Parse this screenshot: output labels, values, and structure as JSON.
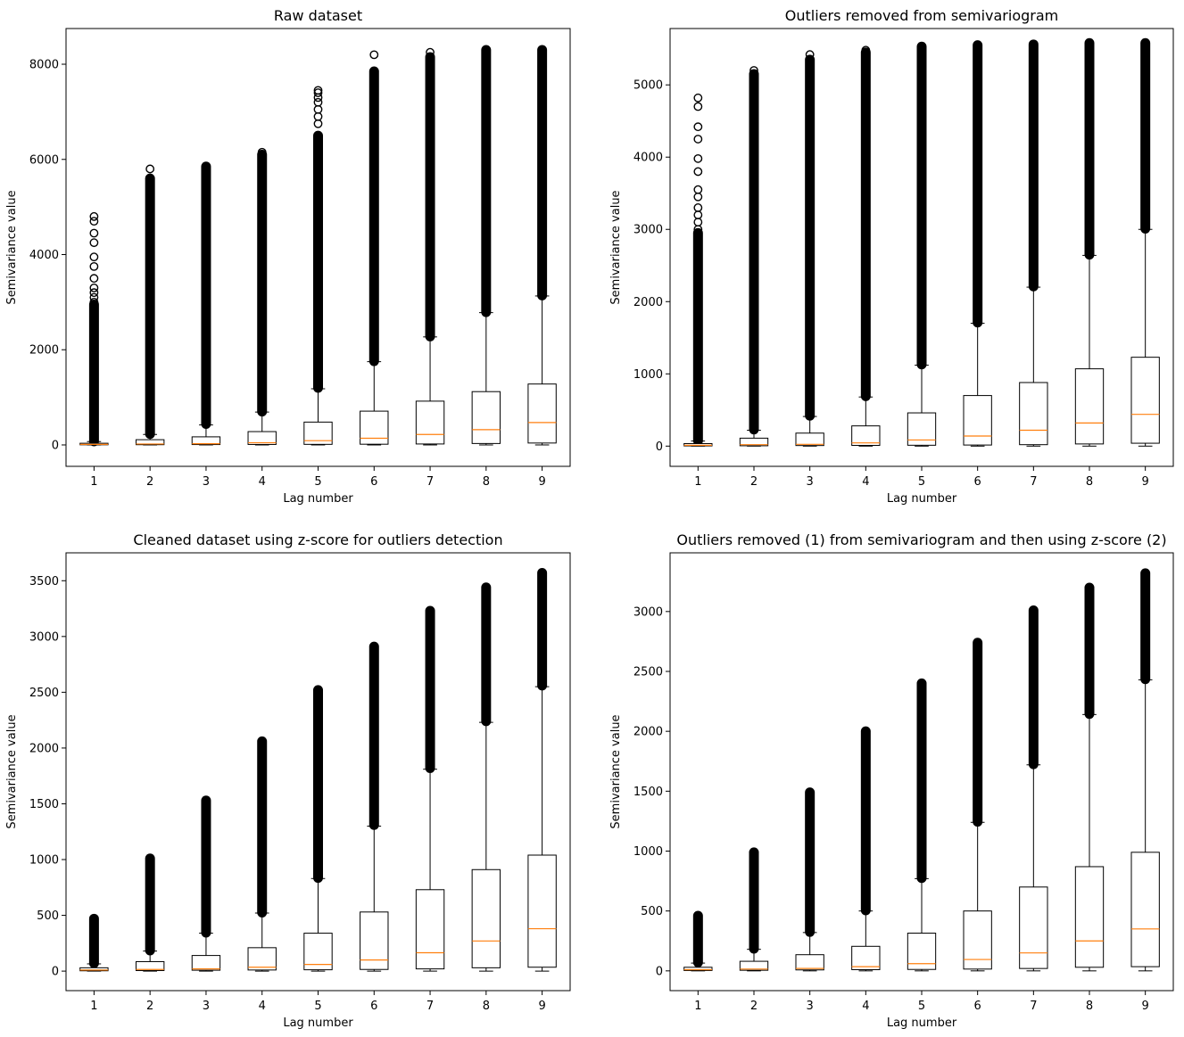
{
  "figure": {
    "background": "#ffffff",
    "box_color": "#000000",
    "median_color": "#ff7f0e",
    "flier_color": "#000000"
  },
  "chart_data": [
    {
      "type": "box",
      "title": "Raw dataset",
      "xlabel": "Lag number",
      "ylabel": "Semivariance value",
      "categories": [
        "1",
        "2",
        "3",
        "4",
        "5",
        "6",
        "7",
        "8",
        "9"
      ],
      "ylim": [
        -450,
        8750
      ],
      "yticks": [
        0,
        2000,
        4000,
        6000,
        8000
      ],
      "boxes": [
        {
          "lag": "1",
          "whislo": 0,
          "q1": 3,
          "med": 12,
          "q3": 35,
          "whishi": 70,
          "flier_lo": 75,
          "flier_hi": 2950,
          "outliers": [
            3000,
            3100,
            3200,
            3300,
            3500,
            3750,
            3950,
            4250,
            4450,
            4700,
            4800
          ]
        },
        {
          "lag": "2",
          "whislo": 0,
          "q1": 5,
          "med": 20,
          "q3": 110,
          "whishi": 220,
          "flier_lo": 230,
          "flier_hi": 5600,
          "outliers": [
            5800
          ]
        },
        {
          "lag": "3",
          "whislo": 0,
          "q1": 8,
          "med": 25,
          "q3": 170,
          "whishi": 420,
          "flier_lo": 440,
          "flier_hi": 5850,
          "outliers": []
        },
        {
          "lag": "4",
          "whislo": 0,
          "q1": 10,
          "med": 45,
          "q3": 280,
          "whishi": 690,
          "flier_lo": 700,
          "flier_hi": 6100,
          "outliers": [
            6150
          ]
        },
        {
          "lag": "5",
          "whislo": 0,
          "q1": 12,
          "med": 90,
          "q3": 480,
          "whishi": 1180,
          "flier_lo": 1200,
          "flier_hi": 6500,
          "outliers": [
            6750,
            6900,
            7050,
            7200,
            7300,
            7400,
            7450
          ]
        },
        {
          "lag": "6",
          "whislo": 0,
          "q1": 15,
          "med": 140,
          "q3": 710,
          "whishi": 1750,
          "flier_lo": 1760,
          "flier_hi": 7850,
          "outliers": [
            8200
          ]
        },
        {
          "lag": "7",
          "whislo": 0,
          "q1": 20,
          "med": 220,
          "q3": 920,
          "whishi": 2270,
          "flier_lo": 2280,
          "flier_hi": 8150,
          "outliers": [
            8250
          ]
        },
        {
          "lag": "8",
          "whislo": 0,
          "q1": 30,
          "med": 320,
          "q3": 1120,
          "whishi": 2780,
          "flier_lo": 2790,
          "flier_hi": 8300,
          "outliers": []
        },
        {
          "lag": "9",
          "whislo": 0,
          "q1": 40,
          "med": 470,
          "q3": 1280,
          "whishi": 3130,
          "flier_lo": 3140,
          "flier_hi": 8300,
          "outliers": []
        }
      ]
    },
    {
      "type": "box",
      "title": "Outliers removed from semivariogram",
      "xlabel": "Lag number",
      "ylabel": "Semivariance value",
      "categories": [
        "1",
        "2",
        "3",
        "4",
        "5",
        "6",
        "7",
        "8",
        "9"
      ],
      "ylim": [
        -280,
        5780
      ],
      "yticks": [
        0,
        1000,
        2000,
        3000,
        4000,
        5000
      ],
      "boxes": [
        {
          "lag": "1",
          "whislo": 0,
          "q1": 3,
          "med": 12,
          "q3": 35,
          "whishi": 70,
          "flier_lo": 75,
          "flier_hi": 2950,
          "outliers": [
            3000,
            3100,
            3200,
            3300,
            3450,
            3550,
            3800,
            3980,
            4250,
            4420,
            4700,
            4820
          ]
        },
        {
          "lag": "2",
          "whislo": 0,
          "q1": 5,
          "med": 20,
          "q3": 110,
          "whishi": 220,
          "flier_lo": 230,
          "flier_hi": 5150,
          "outliers": [
            5200
          ]
        },
        {
          "lag": "3",
          "whislo": 0,
          "q1": 8,
          "med": 25,
          "q3": 180,
          "whishi": 410,
          "flier_lo": 420,
          "flier_hi": 5350,
          "outliers": [
            5420
          ]
        },
        {
          "lag": "4",
          "whislo": 0,
          "q1": 10,
          "med": 45,
          "q3": 280,
          "whishi": 680,
          "flier_lo": 690,
          "flier_hi": 5450,
          "outliers": [
            5480
          ]
        },
        {
          "lag": "5",
          "whislo": 0,
          "q1": 12,
          "med": 85,
          "q3": 460,
          "whishi": 1120,
          "flier_lo": 1130,
          "flier_hi": 5530,
          "outliers": []
        },
        {
          "lag": "6",
          "whislo": 0,
          "q1": 15,
          "med": 140,
          "q3": 700,
          "whishi": 1700,
          "flier_lo": 1710,
          "flier_hi": 5550,
          "outliers": []
        },
        {
          "lag": "7",
          "whislo": 0,
          "q1": 20,
          "med": 220,
          "q3": 880,
          "whishi": 2200,
          "flier_lo": 2210,
          "flier_hi": 5560,
          "outliers": []
        },
        {
          "lag": "8",
          "whislo": 0,
          "q1": 30,
          "med": 320,
          "q3": 1070,
          "whishi": 2640,
          "flier_lo": 2650,
          "flier_hi": 5580,
          "outliers": []
        },
        {
          "lag": "9",
          "whislo": 0,
          "q1": 40,
          "med": 440,
          "q3": 1230,
          "whishi": 3000,
          "flier_lo": 3010,
          "flier_hi": 5580,
          "outliers": []
        }
      ]
    },
    {
      "type": "box",
      "title": "Cleaned dataset using z-score for outliers detection",
      "xlabel": "Lag number",
      "ylabel": "Semivariance value",
      "categories": [
        "1",
        "2",
        "3",
        "4",
        "5",
        "6",
        "7",
        "8",
        "9"
      ],
      "ylim": [
        -175,
        3750
      ],
      "yticks": [
        0,
        500,
        1000,
        1500,
        2000,
        2500,
        3000,
        3500
      ],
      "boxes": [
        {
          "lag": "1",
          "whislo": 0,
          "q1": 3,
          "med": 10,
          "q3": 30,
          "whishi": 65,
          "flier_lo": 70,
          "flier_hi": 470,
          "outliers": []
        },
        {
          "lag": "2",
          "whislo": 0,
          "q1": 5,
          "med": 15,
          "q3": 85,
          "whishi": 180,
          "flier_lo": 185,
          "flier_hi": 1010,
          "outliers": []
        },
        {
          "lag": "3",
          "whislo": 0,
          "q1": 8,
          "med": 20,
          "q3": 140,
          "whishi": 340,
          "flier_lo": 345,
          "flier_hi": 1530,
          "outliers": []
        },
        {
          "lag": "4",
          "whislo": 0,
          "q1": 10,
          "med": 35,
          "q3": 210,
          "whishi": 520,
          "flier_lo": 525,
          "flier_hi": 2060,
          "outliers": []
        },
        {
          "lag": "5",
          "whislo": 0,
          "q1": 12,
          "med": 60,
          "q3": 340,
          "whishi": 830,
          "flier_lo": 835,
          "flier_hi": 2520,
          "outliers": []
        },
        {
          "lag": "6",
          "whislo": 0,
          "q1": 15,
          "med": 100,
          "q3": 530,
          "whishi": 1300,
          "flier_lo": 1310,
          "flier_hi": 2910,
          "outliers": []
        },
        {
          "lag": "7",
          "whislo": 0,
          "q1": 20,
          "med": 165,
          "q3": 730,
          "whishi": 1810,
          "flier_lo": 1820,
          "flier_hi": 3230,
          "outliers": []
        },
        {
          "lag": "8",
          "whislo": 0,
          "q1": 30,
          "med": 270,
          "q3": 910,
          "whishi": 2230,
          "flier_lo": 2240,
          "flier_hi": 3440,
          "outliers": []
        },
        {
          "lag": "9",
          "whislo": 0,
          "q1": 35,
          "med": 380,
          "q3": 1040,
          "whishi": 2550,
          "flier_lo": 2560,
          "flier_hi": 3570,
          "outliers": []
        }
      ]
    },
    {
      "type": "box",
      "title": "Outliers removed (1) from semivariogram and then using z-score (2)",
      "xlabel": "Lag number",
      "ylabel": "Semivariance value",
      "categories": [
        "1",
        "2",
        "3",
        "4",
        "5",
        "6",
        "7",
        "8",
        "9"
      ],
      "ylim": [
        -165,
        3490
      ],
      "yticks": [
        0,
        500,
        1000,
        1500,
        2000,
        2500,
        3000
      ],
      "boxes": [
        {
          "lag": "1",
          "whislo": 0,
          "q1": 3,
          "med": 10,
          "q3": 30,
          "whishi": 65,
          "flier_lo": 70,
          "flier_hi": 460,
          "outliers": []
        },
        {
          "lag": "2",
          "whislo": 0,
          "q1": 5,
          "med": 15,
          "q3": 80,
          "whishi": 180,
          "flier_lo": 185,
          "flier_hi": 990,
          "outliers": []
        },
        {
          "lag": "3",
          "whislo": 0,
          "q1": 8,
          "med": 20,
          "q3": 135,
          "whishi": 320,
          "flier_lo": 325,
          "flier_hi": 1490,
          "outliers": []
        },
        {
          "lag": "4",
          "whislo": 0,
          "q1": 10,
          "med": 35,
          "q3": 205,
          "whishi": 500,
          "flier_lo": 505,
          "flier_hi": 2000,
          "outliers": []
        },
        {
          "lag": "5",
          "whislo": 0,
          "q1": 12,
          "med": 60,
          "q3": 315,
          "whishi": 770,
          "flier_lo": 775,
          "flier_hi": 2400,
          "outliers": []
        },
        {
          "lag": "6",
          "whislo": 0,
          "q1": 15,
          "med": 95,
          "q3": 500,
          "whishi": 1240,
          "flier_lo": 1245,
          "flier_hi": 2740,
          "outliers": []
        },
        {
          "lag": "7",
          "whislo": 0,
          "q1": 20,
          "med": 150,
          "q3": 700,
          "whishi": 1720,
          "flier_lo": 1725,
          "flier_hi": 3010,
          "outliers": []
        },
        {
          "lag": "8",
          "whislo": 0,
          "q1": 30,
          "med": 250,
          "q3": 870,
          "whishi": 2140,
          "flier_lo": 2145,
          "flier_hi": 3200,
          "outliers": []
        },
        {
          "lag": "9",
          "whislo": 0,
          "q1": 35,
          "med": 350,
          "q3": 990,
          "whishi": 2430,
          "flier_lo": 2435,
          "flier_hi": 3320,
          "outliers": []
        }
      ]
    }
  ]
}
